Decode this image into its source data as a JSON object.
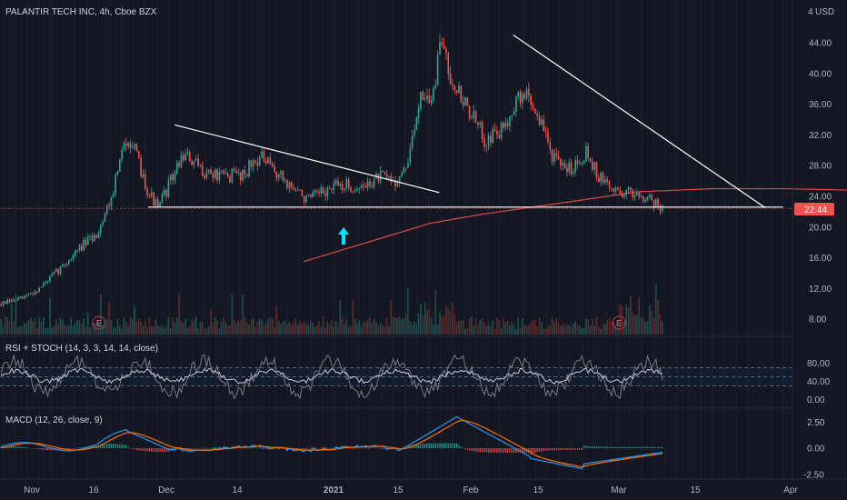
{
  "header": {
    "symbol": "PALANTIR TECH INC, 4h, Cboe BZX",
    "currency": "USD",
    "currency_prefix": "4"
  },
  "price_badge": "22.44",
  "colors": {
    "background": "#131722",
    "up": "#26a69a",
    "down": "#ef5350",
    "ma": "#e04a4a",
    "trendline": "#ffffff",
    "arrow": "#00e5ff",
    "rsi": "#787b86",
    "stoch": "#c9cbd2",
    "macd": "#2196f3",
    "signal": "#ff6d00"
  },
  "chart_data": [
    {
      "type": "candlestick",
      "title": "PALANTIR TECH INC, 4h, Cboe BZX",
      "y_ticks": [
        "44.00",
        "40.00",
        "36.00",
        "32.00",
        "28.00",
        "24.00",
        "20.00",
        "16.00",
        "12.00",
        "8.00"
      ],
      "x_ticks": [
        "Nov",
        "16",
        "Dec",
        "14",
        "2021",
        "15",
        "Feb",
        "15",
        "Mar",
        "15",
        "Apr"
      ],
      "ylim": [
        5.5,
        47.5
      ],
      "last_price": 22.44,
      "keypoints_price": [
        [
          0,
          10.0
        ],
        [
          10,
          10.7
        ],
        [
          18,
          12.0
        ],
        [
          28,
          14.6
        ],
        [
          38,
          17.5
        ],
        [
          45,
          19.0
        ],
        [
          52,
          24.0
        ],
        [
          57,
          29.5
        ],
        [
          60,
          32.0
        ],
        [
          64,
          29.0
        ],
        [
          69,
          25.0
        ],
        [
          74,
          22.4
        ],
        [
          80,
          26.0
        ],
        [
          86,
          29.5
        ],
        [
          94,
          27.5
        ],
        [
          104,
          26.5
        ],
        [
          114,
          27.0
        ],
        [
          122,
          29.2
        ],
        [
          130,
          27.0
        ],
        [
          138,
          25.0
        ],
        [
          145,
          23.5
        ],
        [
          152,
          24.5
        ],
        [
          160,
          25.5
        ],
        [
          170,
          25.0
        ],
        [
          178,
          26.5
        ],
        [
          186,
          26.0
        ],
        [
          190,
          27.0
        ],
        [
          194,
          31.0
        ],
        [
          198,
          38.0
        ],
        [
          203,
          36.0
        ],
        [
          208,
          44.5
        ],
        [
          212,
          40.0
        ],
        [
          216,
          37.5
        ],
        [
          222,
          34.5
        ],
        [
          228,
          31.5
        ],
        [
          236,
          32.5
        ],
        [
          242,
          36.0
        ],
        [
          248,
          37.5
        ],
        [
          254,
          34.0
        ],
        [
          260,
          29.5
        ],
        [
          264,
          27.5
        ],
        [
          270,
          28.0
        ],
        [
          276,
          30.0
        ],
        [
          282,
          26.5
        ],
        [
          288,
          25.0
        ],
        [
          294,
          24.5
        ],
        [
          300,
          24.5
        ],
        [
          306,
          23.8
        ],
        [
          312,
          22.4
        ]
      ],
      "moving_average": [
        [
          16.8,
          15.5
        ],
        [
          24.0,
          20.5
        ],
        [
          27.0,
          21.7
        ],
        [
          31.0,
          23.0
        ],
        [
          35.8,
          24.6
        ],
        [
          40.0,
          25.0
        ],
        [
          44.0,
          25.0
        ],
        [
          48.0,
          24.8
        ]
      ],
      "trendlines": [
        {
          "from": [
            9.5,
            33.3
          ],
          "to": [
            24.5,
            24.5
          ]
        },
        {
          "from": [
            28.7,
            45.0
          ],
          "to": [
            43.0,
            22.5
          ]
        },
        {
          "from": [
            8.0,
            22.6
          ],
          "to": [
            44.0,
            22.6
          ]
        }
      ],
      "events": [
        {
          "label": "E",
          "x_week": 5.2
        },
        {
          "label": "E",
          "x_week": 34.7
        }
      ]
    },
    {
      "type": "line",
      "title": "RSI + STOCH (14, 3, 3, 14, 14, close)",
      "y_ticks": [
        "80.00",
        "40.00",
        "0.00"
      ],
      "levels": [
        70,
        50,
        30
      ],
      "ylim": [
        -5,
        100
      ]
    },
    {
      "type": "line",
      "title": "MACD (12, 26, close, 9)",
      "y_ticks": [
        "2.50",
        "0.00",
        "-2.50"
      ],
      "ylim": [
        -3.2,
        3.2
      ]
    }
  ]
}
